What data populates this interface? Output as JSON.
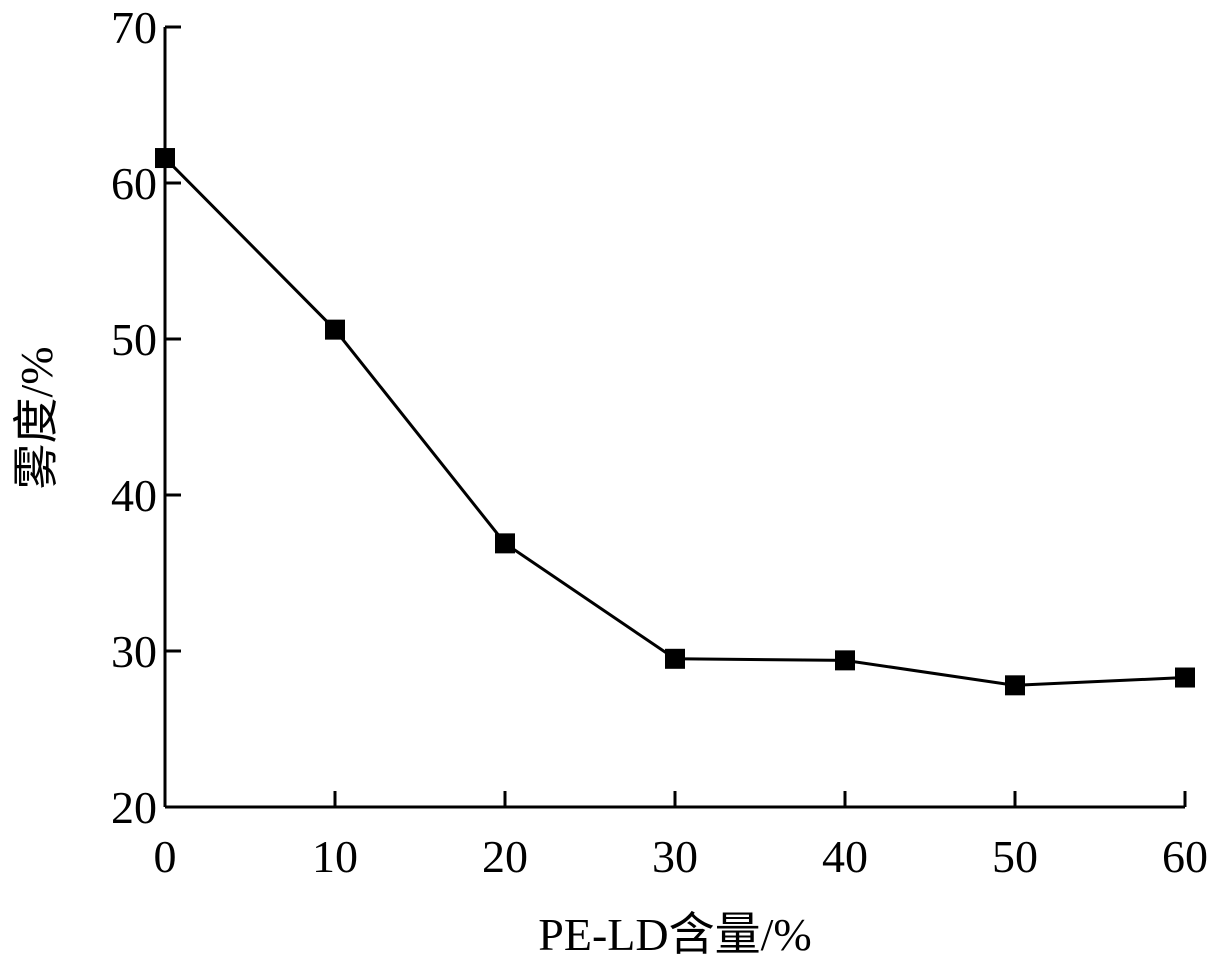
{
  "chart_data": {
    "type": "line",
    "x": [
      0,
      10,
      20,
      30,
      40,
      50,
      60
    ],
    "series": [
      {
        "values": [
          61.6,
          50.6,
          36.9,
          29.5,
          29.4,
          27.8,
          28.3
        ]
      }
    ],
    "xlabel": "PE-LD含量/%",
    "ylabel": "雾度/%",
    "xlim": [
      0,
      60
    ],
    "ylim": [
      20,
      70
    ],
    "xticks": [
      "0",
      "10",
      "20",
      "30",
      "40",
      "50",
      "60"
    ],
    "yticks": [
      "20",
      "30",
      "40",
      "50",
      "60",
      "70"
    ],
    "marker": "filled-square",
    "grid": false,
    "colors": {
      "line": "#000000",
      "marker": "#000000",
      "axis": "#000000"
    }
  }
}
